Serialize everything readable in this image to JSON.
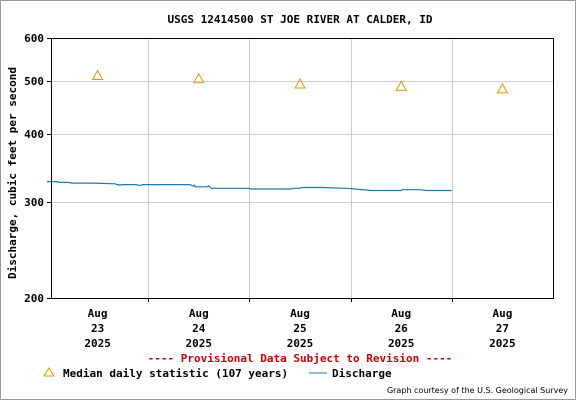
{
  "chart_data": {
    "type": "line",
    "title": "USGS 12414500 ST JOE RIVER AT CALDER, ID",
    "ylabel": "Discharge, cubic feet per second",
    "xlabel": "",
    "y_scale": "log",
    "ylim": [
      200,
      600
    ],
    "y_ticks": [
      200,
      300,
      400,
      500,
      600
    ],
    "x_ticks": [
      {
        "l1": "Aug",
        "l2": "23",
        "l3": "2025"
      },
      {
        "l1": "Aug",
        "l2": "24",
        "l3": "2025"
      },
      {
        "l1": "Aug",
        "l2": "25",
        "l3": "2025"
      },
      {
        "l1": "Aug",
        "l2": "26",
        "l3": "2025"
      },
      {
        "l1": "Aug",
        "l2": "27",
        "l3": "2025"
      }
    ],
    "grid": true,
    "discharge_color": "#1f77b4",
    "median_color": "#e69500",
    "series": [
      {
        "name": "Median daily statistic (107 years)",
        "marker": "triangle",
        "x": [
          "Aug 23",
          "Aug 24",
          "Aug 25",
          "Aug 26",
          "Aug 27"
        ],
        "values": [
          512,
          505,
          494,
          489,
          484
        ]
      },
      {
        "name": "Discharge",
        "marker": "line",
        "x_hours": [
          0,
          2.5,
          2.6,
          5,
          6,
          11,
          16,
          16.3,
          16.5,
          16.8,
          17,
          17.3,
          17.6,
          18.5,
          21,
          21.3,
          21.5,
          22.4,
          22.6,
          24,
          34,
          34.5,
          35,
          35.1,
          35.5,
          38,
          38.3,
          38.6,
          39,
          48,
          48.2,
          49,
          52,
          58,
          58.3,
          60,
          60.3,
          61,
          62,
          65,
          71,
          71.4,
          73,
          77,
          78.5,
          83,
          84,
          84.2,
          86,
          88,
          88.4,
          90,
          91,
          96
        ],
        "values": [
          327,
          327,
          326,
          326,
          325,
          325,
          324,
          324,
          323,
          323,
          323,
          322,
          323,
          323,
          323,
          323,
          322,
          322,
          323,
          323,
          323,
          321,
          322,
          320,
          320,
          320,
          321,
          320,
          318,
          318,
          317,
          317,
          317,
          317,
          318,
          318,
          319,
          319,
          319,
          319,
          318,
          318,
          317,
          315,
          315,
          315,
          315,
          316,
          316,
          316,
          316,
          315,
          315,
          315
        ]
      }
    ]
  },
  "banner": "---- Provisional Data Subject to Revision ----",
  "legend": {
    "median_label": "Median daily statistic (107 years)",
    "discharge_label": "Discharge"
  },
  "credit": "Graph courtesy of the U.S. Geological Survey"
}
